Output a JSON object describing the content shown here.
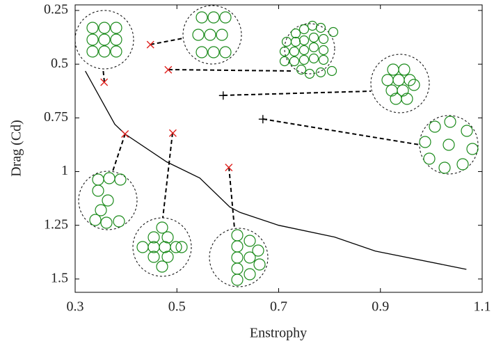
{
  "chart_data": {
    "type": "line",
    "xlabel": "Enstrophy",
    "ylabel": "Drag (Cd)",
    "xlim": [
      0.3,
      1.1
    ],
    "xticks": [
      0.3,
      0.5,
      0.7,
      0.9,
      1.1
    ],
    "ylim": [
      0.224,
      1.562
    ],
    "yticks": [
      0.25,
      0.5,
      0.75,
      1,
      1.25,
      1.5
    ],
    "y_inverted": true,
    "series": [
      {
        "type": "line",
        "color": "#000000",
        "x": [
          0.32,
          0.378,
          0.398,
          0.48,
          0.545,
          0.604,
          0.624,
          0.7,
          0.81,
          0.89,
          1.069
        ],
        "values": [
          0.532,
          0.78,
          0.825,
          0.955,
          1.03,
          1.165,
          1.19,
          1.25,
          1.305,
          1.37,
          1.455
        ]
      },
      {
        "type": "scatter",
        "marker": "x",
        "color": "#e0201c",
        "x": [
          0.357,
          0.448,
          0.483,
          0.398,
          0.492,
          0.602
        ],
        "values": [
          0.584,
          0.409,
          0.526,
          0.825,
          0.821,
          0.981
        ]
      },
      {
        "type": "scatter",
        "marker": "+",
        "color": "#000000",
        "x": [
          0.591,
          0.669
        ],
        "values": [
          0.646,
          0.756
        ]
      }
    ]
  }
}
